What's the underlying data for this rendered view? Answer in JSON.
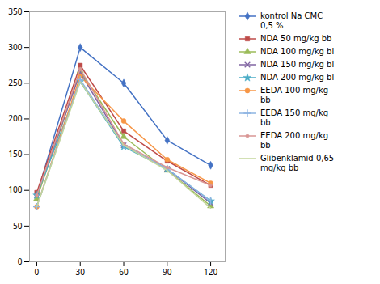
{
  "chart_data": {
    "type": "line",
    "x": [
      0,
      30,
      60,
      90,
      120
    ],
    "series": [
      {
        "name": "kontrol Na CMC\n0,5 %",
        "color": "#4472C4",
        "marker": "diamond",
        "values": [
          93,
          300,
          250,
          170,
          135
        ]
      },
      {
        "name": "NDA 50 mg/kg bb",
        "color": "#BE4B48",
        "marker": "square",
        "values": [
          97,
          275,
          183,
          141,
          107
        ]
      },
      {
        "name": "NDA 100 mg/kg bl",
        "color": "#9BBB59",
        "marker": "triangle",
        "values": [
          88,
          267,
          175,
          128,
          78
        ]
      },
      {
        "name": "NDA 150 mg/kg bl",
        "color": "#8064A2",
        "marker": "x",
        "values": [
          93,
          265,
          163,
          130,
          82
        ]
      },
      {
        "name": "NDA 200 mg/kg bl",
        "color": "#4BACC6",
        "marker": "star",
        "values": [
          93,
          252,
          161,
          130,
          85
        ]
      },
      {
        "name": "EEDA 100 mg/kg\nbb",
        "color": "#F79646",
        "marker": "circle",
        "values": [
          77,
          260,
          197,
          143,
          110
        ]
      },
      {
        "name": "EEDA 150 mg/kg\nbb",
        "color": "#8db4e2",
        "marker": "plus",
        "values": [
          77,
          255,
          163,
          130,
          85
        ]
      },
      {
        "name": "EEDA 200 mg/kg\nbb",
        "color": "#d99694",
        "marker": "point",
        "values": [
          93,
          270,
          165,
          132,
          107
        ]
      },
      {
        "name": "Glibenklamid 0,65\nmg/kg bb",
        "color": "#c3d69b",
        "marker": "none",
        "values": [
          77,
          252,
          163,
          128,
          75
        ]
      }
    ],
    "xlim": [
      -5,
      130
    ],
    "ylim": [
      0,
      350
    ],
    "xticks": [
      0,
      30,
      60,
      90,
      120
    ],
    "yticks": [
      0,
      50,
      100,
      150,
      200,
      250,
      300,
      350
    ],
    "grid": false,
    "legend": "right"
  }
}
